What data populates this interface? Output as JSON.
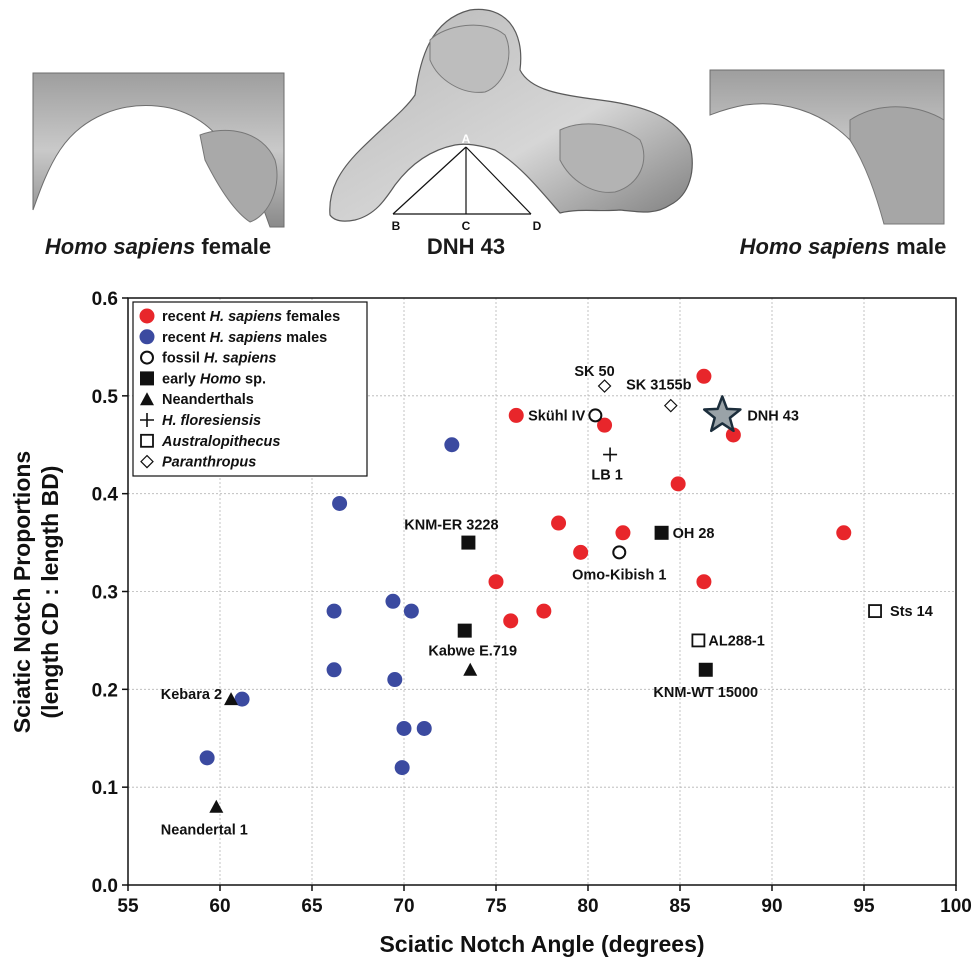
{
  "images": {
    "left_caption_italic": "Homo sapiens",
    "left_caption_rest": " female",
    "center_caption": "DNH 43",
    "right_caption_italic": "Homo sapiens",
    "right_caption_rest": " male",
    "diagram_points": [
      "A",
      "B",
      "C",
      "D"
    ]
  },
  "chart_data": {
    "type": "scatter",
    "xlabel": "Sciatic Notch Angle (degrees)",
    "ylabel_line1": "Sciatic Notch Proportions",
    "ylabel_line2": "(length CD : length BD)",
    "xlim": [
      55,
      100
    ],
    "ylim": [
      0.0,
      0.6
    ],
    "xticks": [
      55,
      60,
      65,
      70,
      75,
      80,
      85,
      90,
      95,
      100
    ],
    "yticks": [
      "0.0",
      "0.1",
      "0.2",
      "0.3",
      "0.4",
      "0.5",
      "0.6"
    ],
    "grid": true,
    "legend_position": "top-left",
    "legend": [
      {
        "marker": "circle-red",
        "prefix": "recent ",
        "italic": "H. sapiens",
        "suffix": " females"
      },
      {
        "marker": "circle-blue",
        "prefix": "recent ",
        "italic": "H. sapiens",
        "suffix": " males"
      },
      {
        "marker": "circle-open",
        "prefix": "fossil ",
        "italic": "H. sapiens",
        "suffix": ""
      },
      {
        "marker": "square-filled",
        "prefix": "early ",
        "italic": "Homo",
        "suffix": " sp."
      },
      {
        "marker": "triangle-filled",
        "prefix": "Neanderthals",
        "italic": "",
        "suffix": ""
      },
      {
        "marker": "plus",
        "prefix": "",
        "italic": "H. floresiensis",
        "suffix": ""
      },
      {
        "marker": "square-open",
        "prefix": "",
        "italic": "Australopithecus",
        "suffix": ""
      },
      {
        "marker": "diamond-open",
        "prefix": "",
        "italic": "Paranthropus",
        "suffix": ""
      }
    ],
    "colors": {
      "females": "#e8262b",
      "males": "#3b4aa0",
      "star_fill": "#9aa3a8",
      "star_stroke": "#1c2e3c"
    },
    "series": [
      {
        "name": "recent H. sapiens females",
        "marker": "circle-red",
        "points": [
          [
            76.1,
            0.48
          ],
          [
            80.9,
            0.47
          ],
          [
            86.3,
            0.52
          ],
          [
            87.9,
            0.46
          ],
          [
            84.9,
            0.41
          ],
          [
            78.4,
            0.37
          ],
          [
            79.6,
            0.34
          ],
          [
            81.9,
            0.36
          ],
          [
            93.9,
            0.36
          ],
          [
            75.0,
            0.31
          ],
          [
            86.3,
            0.31
          ],
          [
            77.6,
            0.28
          ],
          [
            75.8,
            0.27
          ]
        ]
      },
      {
        "name": "recent H. sapiens males",
        "marker": "circle-blue",
        "points": [
          [
            72.6,
            0.45
          ],
          [
            66.5,
            0.39
          ],
          [
            69.4,
            0.29
          ],
          [
            66.2,
            0.28
          ],
          [
            70.4,
            0.28
          ],
          [
            66.2,
            0.22
          ],
          [
            69.5,
            0.21
          ],
          [
            61.2,
            0.19
          ],
          [
            70.0,
            0.16
          ],
          [
            71.1,
            0.16
          ],
          [
            69.9,
            0.12
          ],
          [
            59.3,
            0.13
          ]
        ]
      },
      {
        "name": "fossil H. sapiens",
        "marker": "circle-open",
        "points": [
          {
            "x": 80.4,
            "y": 0.48,
            "label": "Skühl IV"
          },
          {
            "x": 81.7,
            "y": 0.34,
            "label": "Omo-Kibish 1"
          }
        ]
      },
      {
        "name": "early Homo sp.",
        "marker": "square-filled",
        "points": [
          {
            "x": 73.5,
            "y": 0.35,
            "label": "KNM-ER 3228"
          },
          {
            "x": 73.3,
            "y": 0.26,
            "label": "Kabwe E.719"
          },
          {
            "x": 84.0,
            "y": 0.36,
            "label": "OH 28"
          },
          {
            "x": 86.4,
            "y": 0.22,
            "label": "KNM-WT 15000"
          }
        ]
      },
      {
        "name": "Neanderthals",
        "marker": "triangle-filled",
        "points": [
          {
            "x": 73.6,
            "y": 0.22,
            "label": ""
          },
          {
            "x": 60.6,
            "y": 0.19,
            "label": "Kebara 2"
          },
          {
            "x": 59.8,
            "y": 0.08,
            "label": "Neandertal 1"
          }
        ]
      },
      {
        "name": "H. floresiensis",
        "marker": "plus",
        "points": [
          {
            "x": 81.2,
            "y": 0.44,
            "label": "LB 1"
          }
        ]
      },
      {
        "name": "Australopithecus",
        "marker": "square-open",
        "points": [
          {
            "x": 86.0,
            "y": 0.25,
            "label": "AL288-1"
          },
          {
            "x": 95.6,
            "y": 0.28,
            "label": "Sts 14"
          }
        ]
      },
      {
        "name": "Paranthropus",
        "marker": "diamond-open",
        "points": [
          {
            "x": 80.9,
            "y": 0.51,
            "label": "SK 50"
          },
          {
            "x": 84.5,
            "y": 0.49,
            "label": "SK 3155b"
          }
        ]
      },
      {
        "name": "DNH 43",
        "marker": "star",
        "points": [
          {
            "x": 87.3,
            "y": 0.48,
            "label": "DNH 43"
          }
        ]
      }
    ]
  }
}
